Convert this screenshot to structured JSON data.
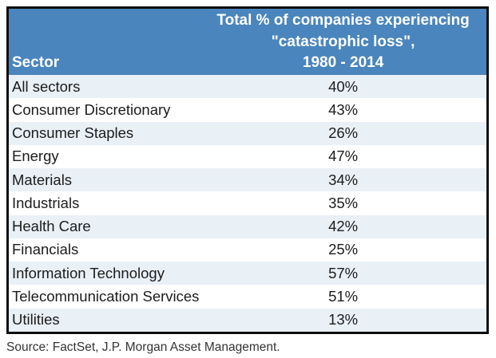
{
  "table": {
    "header": {
      "sector_label": "Sector",
      "value_title_line1": "Total % of companies experiencing",
      "value_title_line2": "\"catastrophic loss\",",
      "value_title_line3": "1980 - 2014"
    }
  },
  "chart_data": {
    "type": "table",
    "title": "Total % of companies experiencing \"catastrophic loss\", 1980 - 2014",
    "columns": [
      "Sector",
      "Total % of companies experiencing \"catastrophic loss\", 1980 - 2014"
    ],
    "rows": [
      {
        "sector": "All sectors",
        "value": "40%"
      },
      {
        "sector": "Consumer Discretionary",
        "value": "43%"
      },
      {
        "sector": "Consumer Staples",
        "value": "26%"
      },
      {
        "sector": "Energy",
        "value": "47%"
      },
      {
        "sector": "Materials",
        "value": "34%"
      },
      {
        "sector": "Industrials",
        "value": "35%"
      },
      {
        "sector": "Health Care",
        "value": "42%"
      },
      {
        "sector": "Financials",
        "value": "25%"
      },
      {
        "sector": "Information Technology",
        "value": "57%"
      },
      {
        "sector": "Telecommunication Services",
        "value": "51%"
      },
      {
        "sector": "Utilities",
        "value": "13%"
      }
    ]
  },
  "source": "Source: FactSet, J.P. Morgan Asset Management.",
  "colors": {
    "header_bg": "#4a85bd",
    "row_alt_bg": "#e9f0f6",
    "row_bg": "#ffffff",
    "border": "#0e0e0e",
    "row_text": "#1c1c1c",
    "header_text": "#ffffff",
    "source_text": "#333333"
  }
}
